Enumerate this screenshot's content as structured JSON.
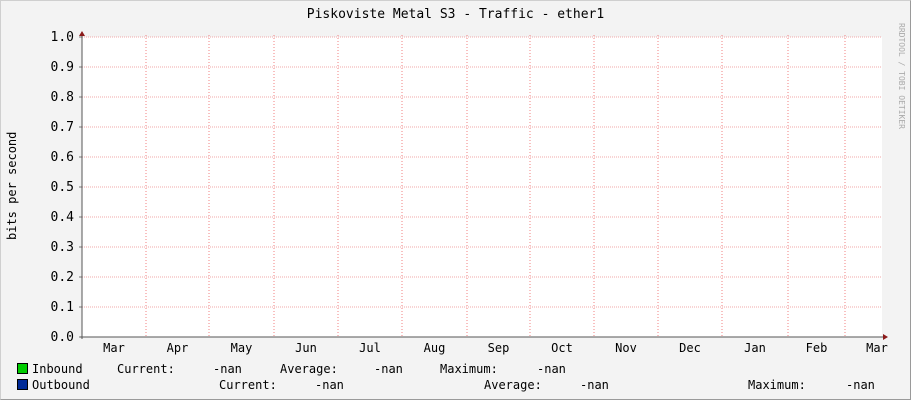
{
  "chart_data": {
    "type": "line",
    "title": "Piskoviste Metal S3 - Traffic - ether1",
    "ylabel": "bits per second",
    "xlabel": "",
    "ylim": [
      0,
      1.0
    ],
    "yticks": [
      "0.0",
      "0.1",
      "0.2",
      "0.3",
      "0.4",
      "0.5",
      "0.6",
      "0.7",
      "0.8",
      "0.9",
      "1.0"
    ],
    "xticks": [
      "Mar",
      "Apr",
      "May",
      "Jun",
      "Jul",
      "Aug",
      "Sep",
      "Oct",
      "Nov",
      "Dec",
      "Jan",
      "Feb",
      "Mar"
    ],
    "grid": true,
    "series": [
      {
        "name": "Inbound",
        "color": "#00cc00",
        "values": [],
        "current": "-nan",
        "average": "-nan",
        "maximum": "-nan"
      },
      {
        "name": "Outbound",
        "color": "#002a97",
        "values": [],
        "current": "-nan",
        "average": "-nan",
        "maximum": "-nan"
      }
    ],
    "legend_labels": {
      "current": "Current:",
      "average": "Average:",
      "maximum": "Maximum:"
    },
    "watermark": "RRDTOOL / TOBI OETIKER"
  }
}
